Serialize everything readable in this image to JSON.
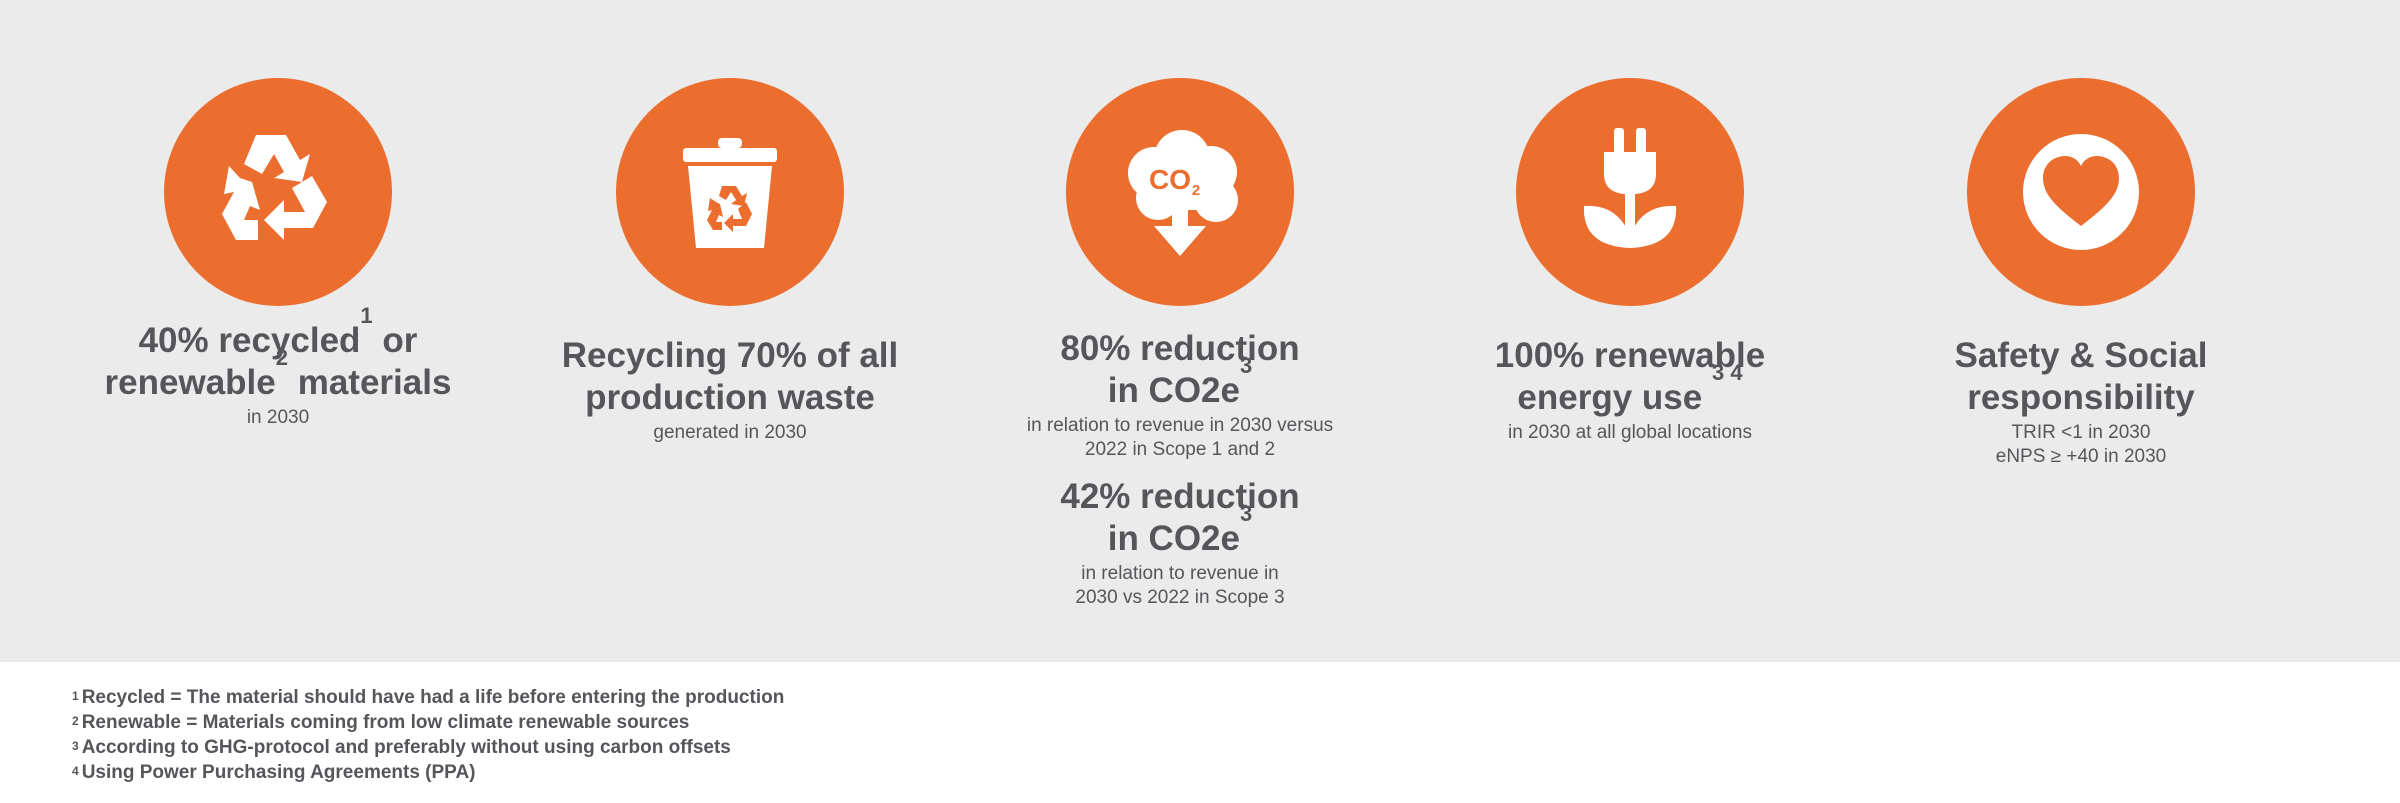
{
  "accent_color": "#eb6e2f",
  "background_band_color": "#ebebeb",
  "text_color": "#54565a",
  "goals": [
    {
      "icon": "recycle-icon",
      "headline": [
        {
          "text": "40% recycled"
        },
        {
          "sup": "1"
        },
        {
          "text": " or"
        },
        {
          "br": true
        },
        {
          "text": "renewable"
        },
        {
          "sup": "2"
        },
        {
          "text": " materials"
        }
      ],
      "sub": [
        "in 2030"
      ]
    },
    {
      "icon": "recycling-bin-icon",
      "headline": [
        {
          "text": "Recycling 70% of all"
        },
        {
          "br": true
        },
        {
          "text": "production waste"
        }
      ],
      "sub": [
        "generated in 2030"
      ]
    },
    {
      "icon": "co2-cloud-icon",
      "icon_label": "CO",
      "icon_label_sub": "2",
      "headline": [
        {
          "text": "80% reduction"
        },
        {
          "br": true
        },
        {
          "text": "in CO2e"
        },
        {
          "sup": "3"
        }
      ],
      "sub": [
        "in relation to revenue in 2030 versus",
        "2022 in Scope 1 and 2"
      ],
      "second_headline": [
        {
          "text": "42% reduction"
        },
        {
          "br": true
        },
        {
          "text": "in CO2e"
        },
        {
          "sup": "3"
        }
      ],
      "second_sub": [
        "in relation to revenue in",
        "2030 vs 2022 in Scope 3"
      ]
    },
    {
      "icon": "plug-plant-icon",
      "headline": [
        {
          "text": "100% renewable"
        },
        {
          "br": true
        },
        {
          "text": "energy use "
        },
        {
          "sup": "3  4"
        }
      ],
      "sub": [
        "in 2030 at all global locations"
      ]
    },
    {
      "icon": "heart-icon",
      "headline": [
        {
          "text": "Safety & Social"
        },
        {
          "br": true
        },
        {
          "text": "responsibility"
        }
      ],
      "sub": [
        "TRIR <1 in 2030",
        "eNPS ≥ +40 in 2030"
      ]
    }
  ],
  "footnotes": [
    {
      "num": "1",
      "text": "Recycled = The material should have had a life before entering the production"
    },
    {
      "num": "2",
      "text": "Renewable = Materials coming from low climate renewable sources"
    },
    {
      "num": "3",
      "text": "According to GHG-protocol and preferably without using carbon offsets"
    },
    {
      "num": "4",
      "text": "Using Power Purchasing Agreements (PPA)"
    }
  ]
}
